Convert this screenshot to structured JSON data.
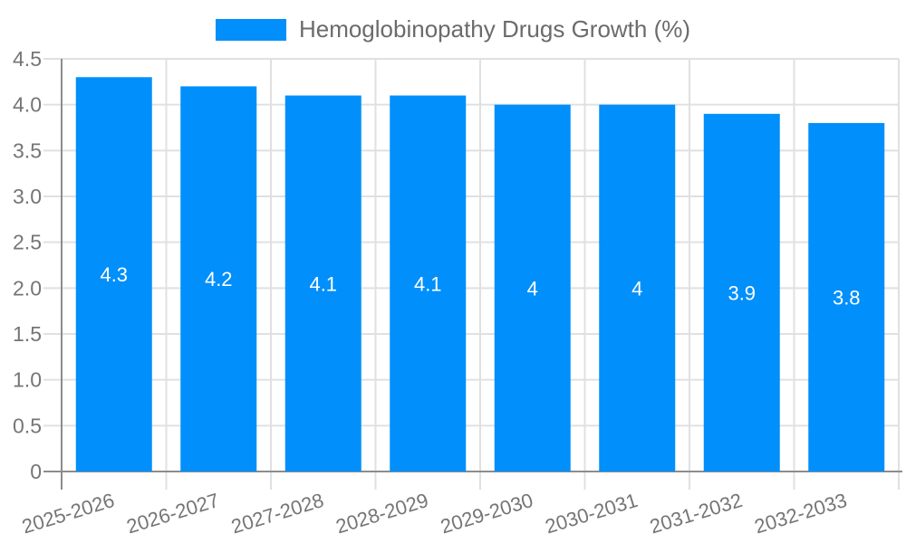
{
  "colors": {
    "bar": "#008FFB",
    "grid": "#e0e0e0",
    "axis": "#8c8c8c",
    "tick_label": "#757575",
    "title": "#6b6b6b",
    "value_label": "#ffffff",
    "background": "#ffffff"
  },
  "chart_data": {
    "type": "bar",
    "title": "Hemoglobinopathy Drugs Growth (%)",
    "xlabel": "",
    "ylabel": "",
    "legend_position": "top",
    "grid": true,
    "categories": [
      "2025-2026",
      "2026-2027",
      "2027-2028",
      "2028-2029",
      "2029-2030",
      "2030-2031",
      "2031-2032",
      "2032-2033"
    ],
    "values": [
      4.3,
      4.2,
      4.1,
      4.1,
      4,
      4,
      3.9,
      3.8
    ],
    "value_labels": [
      "4.3",
      "4.2",
      "4.1",
      "4.1",
      "4",
      "4",
      "3.9",
      "3.8"
    ],
    "ylim": [
      0,
      4.5
    ],
    "y_tick_step": 0.5,
    "y_tick_labels": [
      "0",
      "0.5",
      "1.0",
      "1.5",
      "2.0",
      "2.5",
      "3.0",
      "3.5",
      "4.0",
      "4.5"
    ]
  }
}
